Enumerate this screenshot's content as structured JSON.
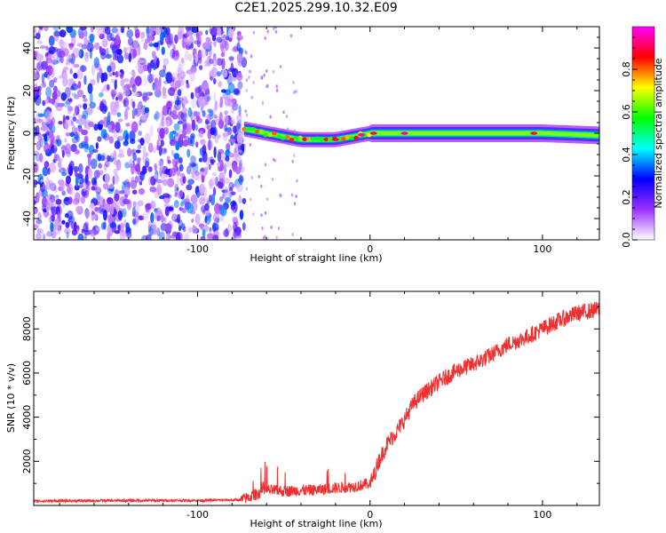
{
  "title": "C2E1.2025.299.10.32.E09",
  "chart_data": [
    {
      "type": "heatmap",
      "title": "C2E1.2025.299.10.32.E09",
      "xlabel": "Height of straight line (km)",
      "ylabel": "Frequency (Hz)",
      "xlim": [
        -195,
        133
      ],
      "ylim": [
        -50,
        50
      ],
      "xticks": [
        -100,
        0,
        100
      ],
      "xtick_labels": [
        "-100",
        "0",
        "100"
      ],
      "yticks": [
        -40,
        -20,
        0,
        20,
        40
      ],
      "ytick_labels": [
        "-40",
        "-20",
        "0",
        "20",
        "40"
      ],
      "noise_region_end_km": -73,
      "ridge": [
        {
          "x": -73,
          "y": 2
        },
        {
          "x": -60,
          "y": 0
        },
        {
          "x": -40,
          "y": -3
        },
        {
          "x": -20,
          "y": -3
        },
        {
          "x": 0,
          "y": 0
        },
        {
          "x": 20,
          "y": 0
        },
        {
          "x": 60,
          "y": 0
        },
        {
          "x": 100,
          "y": 0
        },
        {
          "x": 133,
          "y": -1
        }
      ],
      "colorbar": {
        "label": "Normalized spectral amplitude",
        "range": [
          0,
          1
        ],
        "ticks": [
          0.0,
          0.2,
          0.4,
          0.6,
          0.8
        ],
        "tick_labels": [
          "0.0",
          "0.2",
          "0.4",
          "0.6",
          "0.8"
        ],
        "colors": [
          "#ffffff",
          "#9b30ff",
          "#0000ff",
          "#00ffff",
          "#00ff00",
          "#ffff00",
          "#ff0000",
          "#ff00ff"
        ]
      }
    },
    {
      "type": "line",
      "xlabel": "Height of straight line (km)",
      "ylabel": "SNR (10 * v/v)",
      "xlim": [
        -195,
        133
      ],
      "ylim": [
        0,
        9700
      ],
      "xticks": [
        -100,
        0,
        100
      ],
      "xtick_labels": [
        "-100",
        "0",
        "100"
      ],
      "yticks": [
        2000,
        4000,
        6000,
        8000
      ],
      "ytick_labels": [
        "2000",
        "4000",
        "6000",
        "8000"
      ],
      "color": "#ee3030",
      "series": [
        {
          "name": "SNR",
          "x": [
            -195,
            -150,
            -100,
            -75,
            -70,
            -60,
            -50,
            -40,
            -30,
            -20,
            -10,
            0,
            2,
            5,
            10,
            15,
            20,
            25,
            30,
            35,
            40,
            50,
            60,
            70,
            80,
            90,
            100,
            110,
            120,
            133
          ],
          "y": [
            200,
            220,
            230,
            250,
            380,
            700,
            650,
            680,
            700,
            800,
            850,
            1000,
            1300,
            2000,
            2800,
            3300,
            3900,
            4600,
            5000,
            5300,
            5600,
            6100,
            6400,
            6800,
            7300,
            7600,
            8000,
            8400,
            8700,
            8900
          ]
        }
      ]
    }
  ]
}
